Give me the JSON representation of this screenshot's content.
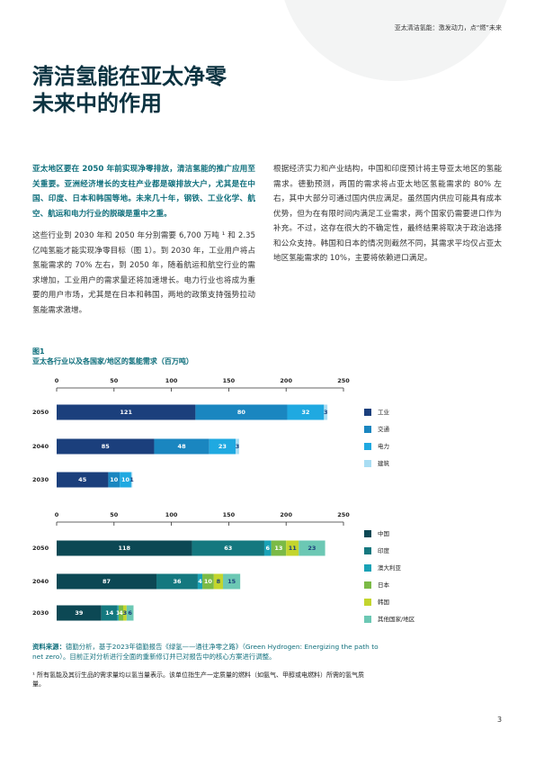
{
  "header": "亚太清洁氢能：激发动力，点“燃”未来",
  "title": [
    "清洁氢能在亚太净零",
    "未来中的作用"
  ],
  "left_column": {
    "lead": "亚太地区要在 2050 年前实现净零排放，清洁氢能的推广应用至关重要。亚洲经济增长的支柱产业都是碳排放大户，尤其是在中国、印度、日本和韩国等地。未来几十年，钢铁、工业化学、航空、航运和电力行业的脱碳是重中之重。",
    "body": "这些行业到 2030 年和 2050 年分别需要 6,700 万吨 ¹ 和 2.35 亿吨氢能才能实现净零目标（图 1）。到 2030 年，工业用户将占氢能需求的 70% 左右，到 2050 年，随着航运和航空行业的需求增加，工业用户的需求量还将加速增长。电力行业也将成为重要的用户市场，尤其是在日本和韩国，两地的政策支持强势拉动氢能需求激增。"
  },
  "right_column": "根据经济实力和产业结构，中国和印度预计将主导亚太地区的氢能需求。德勤预测，两国的需求将占亚太地区氢能需求的 80% 左右，其中大部分可通过国内供应满足。虽然国内供应可能具有成本优势，但为在有限时间内满足工业需求，两个国家仍需要进口作为补充。不过，这存在很大的不确定性，最终结果将取决于政治选择和公众支持。韩国和日本的情况则截然不同，其需求平均仅占亚太地区氢能需求的 10%，主要将依赖进口满足。",
  "figure": {
    "label": "图1",
    "title": "亚太各行业以及各国家/地区的氢能需求（百万吨）"
  },
  "chart_data": [
    {
      "type": "stacked-bar-horizontal",
      "categories": [
        "2050",
        "2040",
        "2030"
      ],
      "xlim": [
        0,
        250
      ],
      "xticks": [
        0,
        50,
        100,
        150,
        200,
        250
      ],
      "series": [
        {
          "name": "工业",
          "color": "#1b3f7c",
          "values": [
            121,
            85,
            45
          ]
        },
        {
          "name": "交通",
          "color": "#1a86c0",
          "values": [
            80,
            48,
            10
          ]
        },
        {
          "name": "电力",
          "color": "#1fa9e1",
          "values": [
            32,
            23,
            10
          ]
        },
        {
          "name": "建筑",
          "color": "#a9ddf3",
          "values": [
            3,
            3,
            1
          ]
        }
      ]
    },
    {
      "type": "stacked-bar-horizontal",
      "categories": [
        "2050",
        "2040",
        "2030"
      ],
      "xlim": [
        0,
        250
      ],
      "xticks": [
        0,
        50,
        100,
        150,
        200,
        250
      ],
      "series": [
        {
          "name": "中国",
          "color": "#0c4854",
          "values": [
            118,
            87,
            39
          ]
        },
        {
          "name": "印度",
          "color": "#14787f",
          "values": [
            63,
            36,
            14
          ]
        },
        {
          "name": "澳大利亚",
          "color": "#19a2b6",
          "values": [
            6,
            4,
            1
          ]
        },
        {
          "name": "日本",
          "color": "#7bba46",
          "values": [
            13,
            10,
            4
          ]
        },
        {
          "name": "韩国",
          "color": "#c3d52d",
          "values": [
            11,
            8,
            3
          ]
        },
        {
          "name": "其他国家/地区",
          "color": "#6cc8b4",
          "values": [
            23,
            15,
            6
          ]
        }
      ]
    }
  ],
  "source": {
    "label": "资料来源：",
    "text": "德勤分析，基于2023年德勤报告《绿氢——通往净零之路》（Green Hydrogen: Energizing the path to net zero）。目前正对分析进行全面的重新修订并已对报告中的核心方案进行调整。"
  },
  "footnote": "¹ 所有氢能及其衍生品的需求量均以氢当量表示。该单位指生产一定质量的燃料（如氨气、甲醇或电燃料）所需的氢气质量。",
  "page_number": "3"
}
